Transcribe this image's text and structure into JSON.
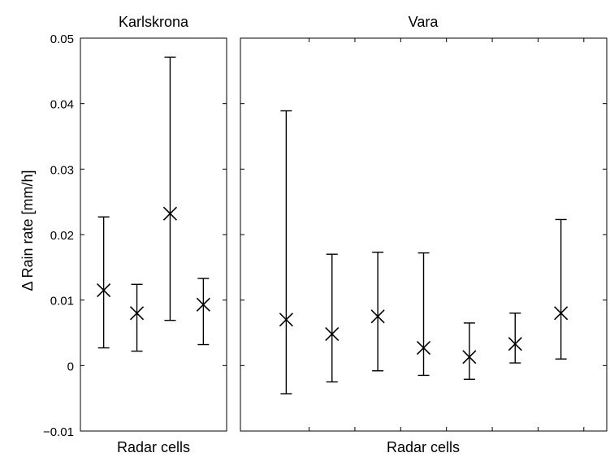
{
  "chart_data": {
    "type": "errorbar",
    "ylabel": "Δ Rain rate [mm/h]",
    "ylim": [
      -0.01,
      0.05
    ],
    "yticks": [
      -0.01,
      0,
      0.01,
      0.02,
      0.03,
      0.04,
      0.05
    ],
    "ytick_labels": [
      "−0.01",
      "0",
      "0.01",
      "0.02",
      "0.03",
      "0.04",
      "0.05"
    ],
    "grid": false,
    "marker": "x",
    "panels": [
      {
        "title": "Karlskrona",
        "xlabel": "Radar cells",
        "x": [
          1,
          2,
          3,
          4
        ],
        "xlim": [
          0.3,
          4.7
        ],
        "y": [
          0.0115,
          0.008,
          0.0232,
          0.0093
        ],
        "lower": [
          0.0027,
          0.0022,
          0.0069,
          0.0032
        ],
        "upper": [
          0.0227,
          0.0124,
          0.0471,
          0.0133
        ]
      },
      {
        "title": "Vara",
        "xlabel": "Radar cells",
        "x": [
          1,
          2,
          3,
          4,
          5,
          6,
          7
        ],
        "xlim": [
          0.0,
          8.0
        ],
        "y": [
          0.007,
          0.0048,
          0.0075,
          0.0027,
          0.0013,
          0.0033,
          0.008
        ],
        "lower": [
          -0.0043,
          -0.0025,
          -0.0008,
          -0.0015,
          -0.0021,
          0.0004,
          0.001
        ],
        "upper": [
          0.0389,
          0.017,
          0.0173,
          0.0172,
          0.0065,
          0.008,
          0.0223
        ]
      }
    ]
  }
}
